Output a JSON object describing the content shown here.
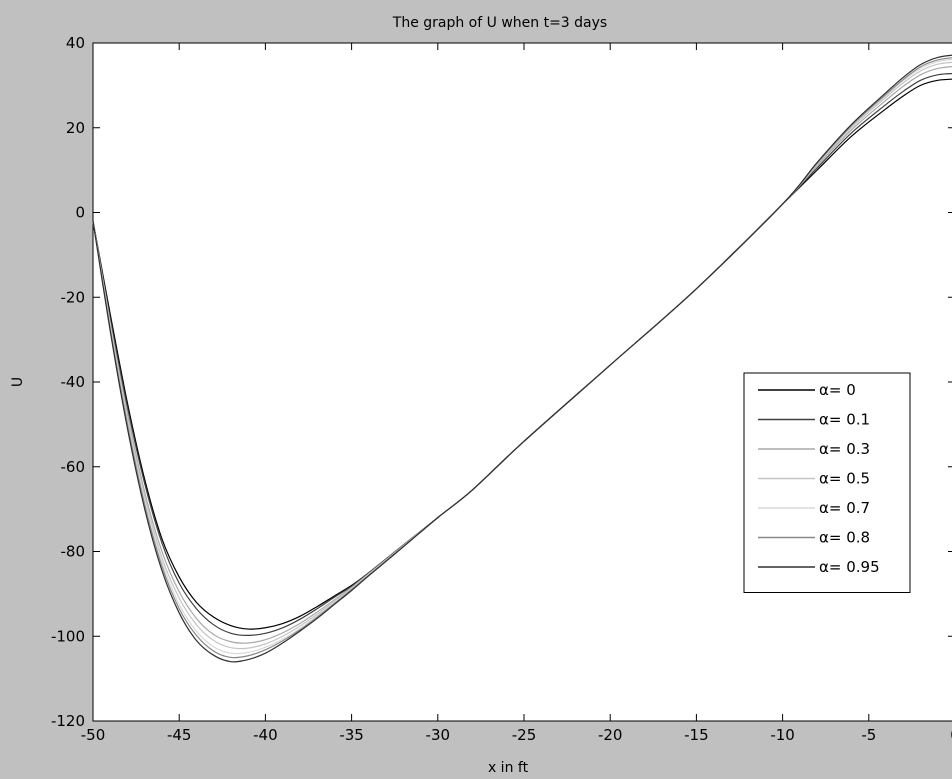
{
  "chart_data": {
    "type": "line",
    "title": "The graph of U when t=3 days",
    "xlabel": "x in ft",
    "ylabel": "U",
    "xlim": [
      -50,
      0
    ],
    "ylim": [
      -120,
      40
    ],
    "xticks": [
      -50,
      -45,
      -40,
      -35,
      -30,
      -25,
      -20,
      -15,
      -10,
      -5,
      0
    ],
    "yticks": [
      -120,
      -100,
      -80,
      -60,
      -40,
      -20,
      0,
      20,
      40
    ],
    "grid": false,
    "legend_position": "right",
    "series": [
      {
        "name": "α= 0",
        "color": "#000000",
        "x": [
          -50,
          -49,
          -48,
          -47,
          -46,
          -45,
          -44,
          -43,
          -42,
          -41,
          -40,
          -39,
          -38,
          -37,
          -36,
          -35,
          -34,
          -32,
          -30,
          -28,
          -25,
          -20,
          -15,
          -10,
          -8,
          -6,
          -4,
          -3,
          -2,
          -1,
          0
        ],
        "y": [
          -2,
          -24,
          -45,
          -63,
          -77,
          -86,
          -92,
          -95.5,
          -97.5,
          -98.3,
          -98,
          -97,
          -95.3,
          -93,
          -90.5,
          -88,
          -85,
          -78.5,
          -72,
          -65.5,
          -54,
          -36,
          -18,
          2,
          10,
          18,
          24.5,
          27.5,
          30,
          31.2,
          31.5
        ]
      },
      {
        "name": "α= 0.1",
        "color": "#404040",
        "x": [
          -50,
          -49,
          -48,
          -47,
          -46,
          -45,
          -44,
          -43,
          -42,
          -41,
          -40,
          -39,
          -38,
          -37,
          -36,
          -35,
          -34,
          -32,
          -30,
          -28,
          -25,
          -20,
          -15,
          -10,
          -8,
          -6,
          -4,
          -3,
          -2,
          -1,
          0
        ],
        "y": [
          -2,
          -25,
          -46,
          -64,
          -78,
          -87.5,
          -93.5,
          -97.3,
          -99.3,
          -99.8,
          -99.3,
          -98,
          -96,
          -93.5,
          -90.8,
          -88.2,
          -85,
          -78.5,
          -72,
          -65.5,
          -54,
          -36,
          -18,
          2,
          10.5,
          18.8,
          25.5,
          28.6,
          31.2,
          32.5,
          32.8
        ]
      },
      {
        "name": "α= 0.3",
        "color": "#a8a8a8",
        "x": [
          -50,
          -49,
          -48,
          -47,
          -46,
          -45,
          -44,
          -43,
          -42,
          -41,
          -40,
          -39,
          -38,
          -37,
          -36,
          -35,
          -34,
          -32,
          -30,
          -28,
          -25,
          -20,
          -15,
          -10,
          -8,
          -6,
          -4,
          -3,
          -2,
          -1,
          0
        ],
        "y": [
          -2,
          -26,
          -47.5,
          -66,
          -80,
          -89.5,
          -95.8,
          -99.6,
          -101.3,
          -101.6,
          -100.8,
          -99.2,
          -97,
          -94.3,
          -91.4,
          -88.5,
          -85.2,
          -78.6,
          -72,
          -65.5,
          -54,
          -36,
          -18,
          2,
          11,
          19.5,
          26.5,
          29.8,
          32.5,
          34,
          34.5
        ]
      },
      {
        "name": "α= 0.5",
        "color": "#c4c4c4",
        "x": [
          -50,
          -49,
          -48,
          -47,
          -46,
          -45,
          -44,
          -43,
          -42,
          -41,
          -40,
          -39,
          -38,
          -37,
          -36,
          -35,
          -34,
          -32,
          -30,
          -28,
          -25,
          -20,
          -15,
          -10,
          -8,
          -6,
          -4,
          -3,
          -2,
          -1,
          0
        ],
        "y": [
          -2,
          -26.5,
          -48.5,
          -67,
          -81.5,
          -91,
          -97.3,
          -101,
          -102.7,
          -102.8,
          -101.8,
          -100,
          -97.6,
          -94.8,
          -91.8,
          -88.7,
          -85.4,
          -78.7,
          -72,
          -65.5,
          -54,
          -36,
          -18,
          2,
          11.3,
          20,
          27.2,
          30.6,
          33.4,
          35,
          35.5
        ]
      },
      {
        "name": "α= 0.7",
        "color": "#d8d8d8",
        "x": [
          -50,
          -49,
          -48,
          -47,
          -46,
          -45,
          -44,
          -43,
          -42,
          -41,
          -40,
          -39,
          -38,
          -37,
          -36,
          -35,
          -34,
          -32,
          -30,
          -28,
          -25,
          -20,
          -15,
          -10,
          -8,
          -6,
          -4,
          -3,
          -2,
          -1,
          0
        ],
        "y": [
          -2,
          -27,
          -49.5,
          -68,
          -82.5,
          -92.5,
          -98.8,
          -102.5,
          -104,
          -103.8,
          -102.6,
          -100.7,
          -98.2,
          -95.2,
          -92.1,
          -88.9,
          -85.5,
          -78.8,
          -72,
          -65.5,
          -54,
          -36,
          -18,
          2,
          11.5,
          20.3,
          27.6,
          31.1,
          34,
          35.6,
          36.2
        ]
      },
      {
        "name": "α= 0.8",
        "color": "#888888",
        "x": [
          -50,
          -49,
          -48,
          -47,
          -46,
          -45,
          -44,
          -43,
          -42,
          -41,
          -40,
          -39,
          -38,
          -37,
          -36,
          -35,
          -34,
          -32,
          -30,
          -28,
          -25,
          -20,
          -15,
          -10,
          -8,
          -6,
          -4,
          -3,
          -2,
          -1,
          0
        ],
        "y": [
          -2,
          -27.5,
          -50,
          -69,
          -83.5,
          -93.5,
          -99.8,
          -103.5,
          -105,
          -104.6,
          -103.2,
          -101.1,
          -98.5,
          -95.5,
          -92.3,
          -89,
          -85.6,
          -78.8,
          -72,
          -65.5,
          -54,
          -36,
          -18,
          2,
          11.6,
          20.5,
          27.9,
          31.4,
          34.4,
          36,
          36.6
        ]
      },
      {
        "name": "α= 0.95",
        "color": "#303030",
        "x": [
          -50,
          -49,
          -48,
          -47,
          -46,
          -45,
          -44,
          -43,
          -42,
          -41,
          -40,
          -39,
          -38,
          -37,
          -36,
          -35,
          -34,
          -32,
          -30,
          -28,
          -25,
          -20,
          -15,
          -10,
          -8,
          -6,
          -4,
          -3,
          -2,
          -1,
          0
        ],
        "y": [
          -2,
          -28,
          -51,
          -70,
          -84.5,
          -94.5,
          -101,
          -104.5,
          -106,
          -105.5,
          -104,
          -101.6,
          -98.8,
          -95.8,
          -92.5,
          -89.2,
          -85.7,
          -78.9,
          -72,
          -65.5,
          -54,
          -36,
          -18,
          2,
          11.8,
          20.8,
          28.3,
          31.9,
          34.9,
          36.6,
          37.2
        ]
      }
    ]
  }
}
